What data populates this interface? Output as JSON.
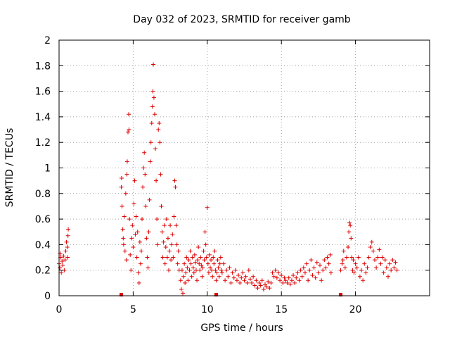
{
  "chart_data": {
    "type": "scatter",
    "title": "Day 032 of 2023, SRMTID for receiver gamb",
    "xlabel": "GPS time / hours",
    "ylabel": "SRMTID / TECUs",
    "xlim": [
      0,
      25
    ],
    "ylim": [
      0,
      2
    ],
    "x_ticks": [
      0,
      5,
      10,
      15,
      20
    ],
    "x_tick_labels": [
      "0",
      "5",
      "10",
      "15",
      "20"
    ],
    "y_ticks": [
      0,
      0.2,
      0.4,
      0.6,
      0.8,
      1,
      1.2,
      1.4,
      1.6,
      1.8,
      2
    ],
    "y_tick_labels": [
      "0",
      "0.2",
      "0.4",
      "0.6",
      "0.8",
      "1",
      "1.2",
      "1.4",
      "1.6",
      "1.8",
      "2"
    ],
    "grid": true,
    "marker": "plus",
    "color": "#e00000",
    "series": [
      {
        "name": "SRMTID",
        "points": [
          [
            0.0,
            0.25
          ],
          [
            0.05,
            0.22
          ],
          [
            0.1,
            0.3
          ],
          [
            0.15,
            0.18
          ],
          [
            0.2,
            0.27
          ],
          [
            0.25,
            0.24
          ],
          [
            0.3,
            0.31
          ],
          [
            0.35,
            0.2
          ],
          [
            0.4,
            0.28
          ],
          [
            0.45,
            0.35
          ],
          [
            0.5,
            0.42
          ],
          [
            0.55,
            0.38
          ],
          [
            0.6,
            0.47
          ],
          [
            0.62,
            0.52
          ],
          [
            0.58,
            0.3
          ],
          [
            0.08,
            0.33
          ],
          [
            4.2,
            0.85
          ],
          [
            4.22,
            0.92
          ],
          [
            4.25,
            0.7
          ],
          [
            4.3,
            0.52
          ],
          [
            4.33,
            0.45
          ],
          [
            4.36,
            0.4
          ],
          [
            4.4,
            0.62
          ],
          [
            4.45,
            0.35
          ],
          [
            4.5,
            0.8
          ],
          [
            4.55,
            0.28
          ],
          [
            4.58,
            0.95
          ],
          [
            4.6,
            1.05
          ],
          [
            4.65,
            1.28
          ],
          [
            4.7,
            1.42
          ],
          [
            4.72,
            1.3
          ],
          [
            4.75,
            0.6
          ],
          [
            4.8,
            0.32
          ],
          [
            4.85,
            0.2
          ],
          [
            4.9,
            0.45
          ],
          [
            4.95,
            0.55
          ],
          [
            5.0,
            0.38
          ],
          [
            5.05,
            0.72
          ],
          [
            5.1,
            0.9
          ],
          [
            5.15,
            0.48
          ],
          [
            5.2,
            0.62
          ],
          [
            5.25,
            0.3
          ],
          [
            5.3,
            0.5
          ],
          [
            5.35,
            0.18
          ],
          [
            5.4,
            0.1
          ],
          [
            5.45,
            0.42
          ],
          [
            5.5,
            0.25
          ],
          [
            5.55,
            0.35
          ],
          [
            5.6,
            0.6
          ],
          [
            5.65,
            0.85
          ],
          [
            5.7,
            1.0
          ],
          [
            5.75,
            1.12
          ],
          [
            5.8,
            0.95
          ],
          [
            5.85,
            0.7
          ],
          [
            5.9,
            0.45
          ],
          [
            5.95,
            0.3
          ],
          [
            6.0,
            0.22
          ],
          [
            6.05,
            0.5
          ],
          [
            6.1,
            0.75
          ],
          [
            6.15,
            1.05
          ],
          [
            6.2,
            1.2
          ],
          [
            6.25,
            1.35
          ],
          [
            6.3,
            1.48
          ],
          [
            6.33,
            1.6
          ],
          [
            6.36,
            1.81
          ],
          [
            6.4,
            1.55
          ],
          [
            6.45,
            1.42
          ],
          [
            6.5,
            1.15
          ],
          [
            6.55,
            0.9
          ],
          [
            6.6,
            0.6
          ],
          [
            6.65,
            0.4
          ],
          [
            6.7,
            1.3
          ],
          [
            6.75,
            1.35
          ],
          [
            6.8,
            1.2
          ],
          [
            6.85,
            0.95
          ],
          [
            6.9,
            0.7
          ],
          [
            6.95,
            0.5
          ],
          [
            7.0,
            0.3
          ],
          [
            7.05,
            0.42
          ],
          [
            7.1,
            0.55
          ],
          [
            7.15,
            0.25
          ],
          [
            7.2,
            0.38
          ],
          [
            7.25,
            0.6
          ],
          [
            7.3,
            0.3
          ],
          [
            7.35,
            0.45
          ],
          [
            7.4,
            0.2
          ],
          [
            7.45,
            0.35
          ],
          [
            7.5,
            0.55
          ],
          [
            7.55,
            0.28
          ],
          [
            7.6,
            0.4
          ],
          [
            7.65,
            0.48
          ],
          [
            7.7,
            0.3
          ],
          [
            7.75,
            0.62
          ],
          [
            7.8,
            0.9
          ],
          [
            7.85,
            0.85
          ],
          [
            7.9,
            0.55
          ],
          [
            7.95,
            0.4
          ],
          [
            8.0,
            0.25
          ],
          [
            8.05,
            0.35
          ],
          [
            8.1,
            0.2
          ],
          [
            8.2,
            0.12
          ],
          [
            8.25,
            0.05
          ],
          [
            8.3,
            0.2
          ],
          [
            8.35,
            0.02
          ],
          [
            8.4,
            0.15
          ],
          [
            8.45,
            0.25
          ],
          [
            8.5,
            0.1
          ],
          [
            8.55,
            0.18
          ],
          [
            8.6,
            0.3
          ],
          [
            8.65,
            0.22
          ],
          [
            8.7,
            0.12
          ],
          [
            8.75,
            0.28
          ],
          [
            8.8,
            0.2
          ],
          [
            8.85,
            0.35
          ],
          [
            8.9,
            0.25
          ],
          [
            8.95,
            0.15
          ],
          [
            9.0,
            0.3
          ],
          [
            9.05,
            0.22
          ],
          [
            9.1,
            0.18
          ],
          [
            9.15,
            0.32
          ],
          [
            9.2,
            0.26
          ],
          [
            9.25,
            0.2
          ],
          [
            9.3,
            0.12
          ],
          [
            9.35,
            0.28
          ],
          [
            9.4,
            0.38
          ],
          [
            9.45,
            0.25
          ],
          [
            9.5,
            0.2
          ],
          [
            9.55,
            0.3
          ],
          [
            9.6,
            0.24
          ],
          [
            9.65,
            0.15
          ],
          [
            9.7,
            0.22
          ],
          [
            9.75,
            0.35
          ],
          [
            9.8,
            0.28
          ],
          [
            9.85,
            0.5
          ],
          [
            9.9,
            0.4
          ],
          [
            9.95,
            0.3
          ],
          [
            10.0,
            0.69
          ],
          [
            10.05,
            0.25
          ],
          [
            10.1,
            0.18
          ],
          [
            10.15,
            0.32
          ],
          [
            10.2,
            0.22
          ],
          [
            10.25,
            0.28
          ],
          [
            10.3,
            0.2
          ],
          [
            10.35,
            0.15
          ],
          [
            10.4,
            0.3
          ],
          [
            10.45,
            0.25
          ],
          [
            10.5,
            0.35
          ],
          [
            10.55,
            0.2
          ],
          [
            10.6,
            0.12
          ],
          [
            10.65,
            0.18
          ],
          [
            10.7,
            0.28
          ],
          [
            10.75,
            0.22
          ],
          [
            10.8,
            0.15
          ],
          [
            10.85,
            0.25
          ],
          [
            10.9,
            0.3
          ],
          [
            10.95,
            0.2
          ],
          [
            11.0,
            0.18
          ],
          [
            11.1,
            0.25
          ],
          [
            11.2,
            0.12
          ],
          [
            11.3,
            0.2
          ],
          [
            11.4,
            0.15
          ],
          [
            11.5,
            0.22
          ],
          [
            11.6,
            0.1
          ],
          [
            11.7,
            0.18
          ],
          [
            11.8,
            0.14
          ],
          [
            11.9,
            0.2
          ],
          [
            12.0,
            0.12
          ],
          [
            12.1,
            0.16
          ],
          [
            12.2,
            0.1
          ],
          [
            12.3,
            0.14
          ],
          [
            12.4,
            0.18
          ],
          [
            12.5,
            0.12
          ],
          [
            12.6,
            0.15
          ],
          [
            12.7,
            0.1
          ],
          [
            12.8,
            0.2
          ],
          [
            12.9,
            0.13
          ],
          [
            13.0,
            0.1
          ],
          [
            13.1,
            0.15
          ],
          [
            13.2,
            0.08
          ],
          [
            13.3,
            0.12
          ],
          [
            13.4,
            0.06
          ],
          [
            13.5,
            0.1
          ],
          [
            13.6,
            0.08
          ],
          [
            13.7,
            0.12
          ],
          [
            13.8,
            0.05
          ],
          [
            13.9,
            0.09
          ],
          [
            14.0,
            0.07
          ],
          [
            14.1,
            0.11
          ],
          [
            14.2,
            0.06
          ],
          [
            14.3,
            0.1
          ],
          [
            14.4,
            0.18
          ],
          [
            14.5,
            0.15
          ],
          [
            14.6,
            0.2
          ],
          [
            14.7,
            0.14
          ],
          [
            14.8,
            0.18
          ],
          [
            14.9,
            0.12
          ],
          [
            15.0,
            0.16
          ],
          [
            15.1,
            0.1
          ],
          [
            15.2,
            0.14
          ],
          [
            15.3,
            0.12
          ],
          [
            15.4,
            0.1
          ],
          [
            15.5,
            0.14
          ],
          [
            15.6,
            0.09
          ],
          [
            15.7,
            0.12
          ],
          [
            15.8,
            0.16
          ],
          [
            15.9,
            0.1
          ],
          [
            16.0,
            0.14
          ],
          [
            16.1,
            0.18
          ],
          [
            16.2,
            0.12
          ],
          [
            16.3,
            0.2
          ],
          [
            16.4,
            0.15
          ],
          [
            16.5,
            0.22
          ],
          [
            16.6,
            0.18
          ],
          [
            16.7,
            0.25
          ],
          [
            16.8,
            0.12
          ],
          [
            16.9,
            0.2
          ],
          [
            17.0,
            0.28
          ],
          [
            17.1,
            0.16
          ],
          [
            17.2,
            0.22
          ],
          [
            17.3,
            0.14
          ],
          [
            17.4,
            0.26
          ],
          [
            17.5,
            0.18
          ],
          [
            17.6,
            0.24
          ],
          [
            17.7,
            0.12
          ],
          [
            17.8,
            0.2
          ],
          [
            17.9,
            0.28
          ],
          [
            18.0,
            0.22
          ],
          [
            18.1,
            0.3
          ],
          [
            18.2,
            0.25
          ],
          [
            18.3,
            0.32
          ],
          [
            18.35,
            0.18
          ],
          [
            19.0,
            0.2
          ],
          [
            19.1,
            0.25
          ],
          [
            19.15,
            0.28
          ],
          [
            19.2,
            0.35
          ],
          [
            19.3,
            0.22
          ],
          [
            19.4,
            0.3
          ],
          [
            19.5,
            0.38
          ],
          [
            19.55,
            0.5
          ],
          [
            19.6,
            0.57
          ],
          [
            19.65,
            0.55
          ],
          [
            19.7,
            0.45
          ],
          [
            19.75,
            0.3
          ],
          [
            19.8,
            0.2
          ],
          [
            19.85,
            0.28
          ],
          [
            19.9,
            0.18
          ],
          [
            20.0,
            0.25
          ],
          [
            20.1,
            0.22
          ],
          [
            20.2,
            0.3
          ],
          [
            20.3,
            0.15
          ],
          [
            20.4,
            0.2
          ],
          [
            20.5,
            0.12
          ],
          [
            20.6,
            0.25
          ],
          [
            20.7,
            0.18
          ],
          [
            20.8,
            0.22
          ],
          [
            20.9,
            0.3
          ],
          [
            21.0,
            0.38
          ],
          [
            21.1,
            0.42
          ],
          [
            21.2,
            0.35
          ],
          [
            21.3,
            0.28
          ],
          [
            21.4,
            0.22
          ],
          [
            21.5,
            0.3
          ],
          [
            21.6,
            0.36
          ],
          [
            21.7,
            0.25
          ],
          [
            21.8,
            0.3
          ],
          [
            21.9,
            0.18
          ],
          [
            22.0,
            0.28
          ],
          [
            22.1,
            0.22
          ],
          [
            22.2,
            0.15
          ],
          [
            22.3,
            0.25
          ],
          [
            22.4,
            0.2
          ],
          [
            22.5,
            0.28
          ],
          [
            22.6,
            0.22
          ],
          [
            22.7,
            0.26
          ],
          [
            22.8,
            0.2
          ]
        ]
      }
    ],
    "gap_markers_x": [
      4.2,
      10.6,
      19.0
    ]
  }
}
